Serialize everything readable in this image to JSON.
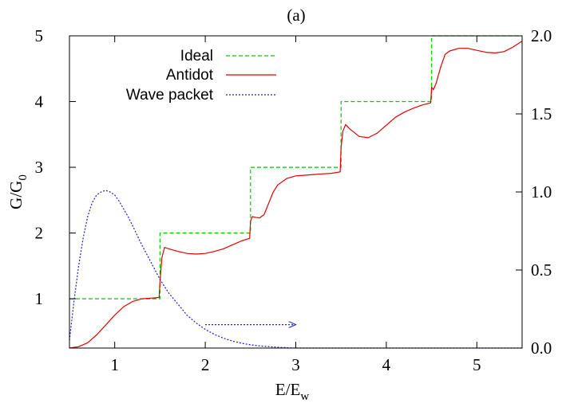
{
  "chart_data": {
    "type": "line",
    "panel_label": "(a)",
    "xlabel": {
      "main": "E/E",
      "sub": "w"
    },
    "ylabel": {
      "main": "G/G",
      "sub": "0"
    },
    "xlim": [
      0.5,
      5.5
    ],
    "ylim_left": [
      0.25,
      5.0
    ],
    "ylim_right": [
      0.0,
      2.0
    ],
    "xticks": [
      1,
      2,
      3,
      4,
      5
    ],
    "yticks_left": [
      1,
      2,
      3,
      4,
      5
    ],
    "yticks_right": [
      "0.0",
      "0.5",
      "1.0",
      "1.5",
      "2.0"
    ],
    "grid": false,
    "legend_position": "top-left",
    "colors": {
      "ideal": "#00cc00",
      "antidot": "#e00000",
      "wave": "#1a1acc"
    },
    "series": [
      {
        "name": "Ideal",
        "style": "dashed",
        "axis": "left",
        "x": [
          0.5,
          1.5,
          1.5,
          2.5,
          2.5,
          3.5,
          3.5,
          4.5,
          4.5,
          5.5
        ],
        "y": [
          1,
          1,
          2,
          2,
          3,
          3,
          4,
          4,
          5,
          5
        ]
      },
      {
        "name": "Antidot",
        "style": "solid",
        "axis": "left",
        "x": [
          0.5,
          0.6,
          0.7,
          0.8,
          0.9,
          1.0,
          1.1,
          1.2,
          1.3,
          1.4,
          1.49,
          1.5,
          1.52,
          1.55,
          1.6,
          1.7,
          1.8,
          1.9,
          2.0,
          2.1,
          2.2,
          2.3,
          2.4,
          2.49,
          2.5,
          2.52,
          2.55,
          2.6,
          2.65,
          2.7,
          2.75,
          2.8,
          2.9,
          3.0,
          3.1,
          3.2,
          3.3,
          3.4,
          3.49,
          3.5,
          3.52,
          3.55,
          3.6,
          3.7,
          3.8,
          3.9,
          4.0,
          4.1,
          4.2,
          4.3,
          4.4,
          4.49,
          4.5,
          4.52,
          4.55,
          4.6,
          4.65,
          4.7,
          4.8,
          4.9,
          5.0,
          5.1,
          5.2,
          5.3,
          5.4,
          5.5
        ],
        "y": [
          0.25,
          0.27,
          0.33,
          0.45,
          0.6,
          0.75,
          0.88,
          0.96,
          1.0,
          1.01,
          1.02,
          1.25,
          1.62,
          1.78,
          1.76,
          1.72,
          1.69,
          1.68,
          1.69,
          1.72,
          1.76,
          1.82,
          1.88,
          1.92,
          2.18,
          2.25,
          2.24,
          2.23,
          2.28,
          2.45,
          2.62,
          2.73,
          2.83,
          2.87,
          2.88,
          2.89,
          2.9,
          2.91,
          2.93,
          3.3,
          3.55,
          3.65,
          3.58,
          3.47,
          3.45,
          3.52,
          3.64,
          3.76,
          3.84,
          3.9,
          3.95,
          3.98,
          4.22,
          4.18,
          4.28,
          4.52,
          4.72,
          4.77,
          4.81,
          4.81,
          4.78,
          4.75,
          4.74,
          4.76,
          4.83,
          4.92
        ]
      },
      {
        "name": "Wave packet",
        "style": "dotted",
        "axis": "right",
        "x": [
          0.5,
          0.55,
          0.6,
          0.65,
          0.7,
          0.75,
          0.8,
          0.85,
          0.9,
          0.95,
          1.0,
          1.05,
          1.1,
          1.15,
          1.2,
          1.3,
          1.4,
          1.5,
          1.6,
          1.7,
          1.8,
          1.9,
          2.0,
          2.1,
          2.2,
          2.3,
          2.4,
          2.5,
          2.6,
          2.7,
          2.8,
          2.9,
          3.0,
          3.5,
          4.0,
          4.5,
          5.0,
          5.5
        ],
        "y": [
          0.05,
          0.3,
          0.52,
          0.7,
          0.84,
          0.93,
          0.98,
          1.0,
          1.01,
          1.0,
          0.98,
          0.94,
          0.89,
          0.84,
          0.78,
          0.66,
          0.55,
          0.44,
          0.35,
          0.28,
          0.21,
          0.16,
          0.12,
          0.088,
          0.064,
          0.045,
          0.031,
          0.021,
          0.014,
          0.009,
          0.005,
          0.002,
          0.0,
          0.0,
          0.0,
          0.0,
          0.0,
          0.0
        ]
      }
    ],
    "annotations": [
      {
        "type": "arrow",
        "style": "dotted",
        "color": "#1a1acc",
        "axis": "right",
        "from": [
          2.0,
          0.15
        ],
        "to": [
          3.0,
          0.15
        ]
      }
    ]
  }
}
